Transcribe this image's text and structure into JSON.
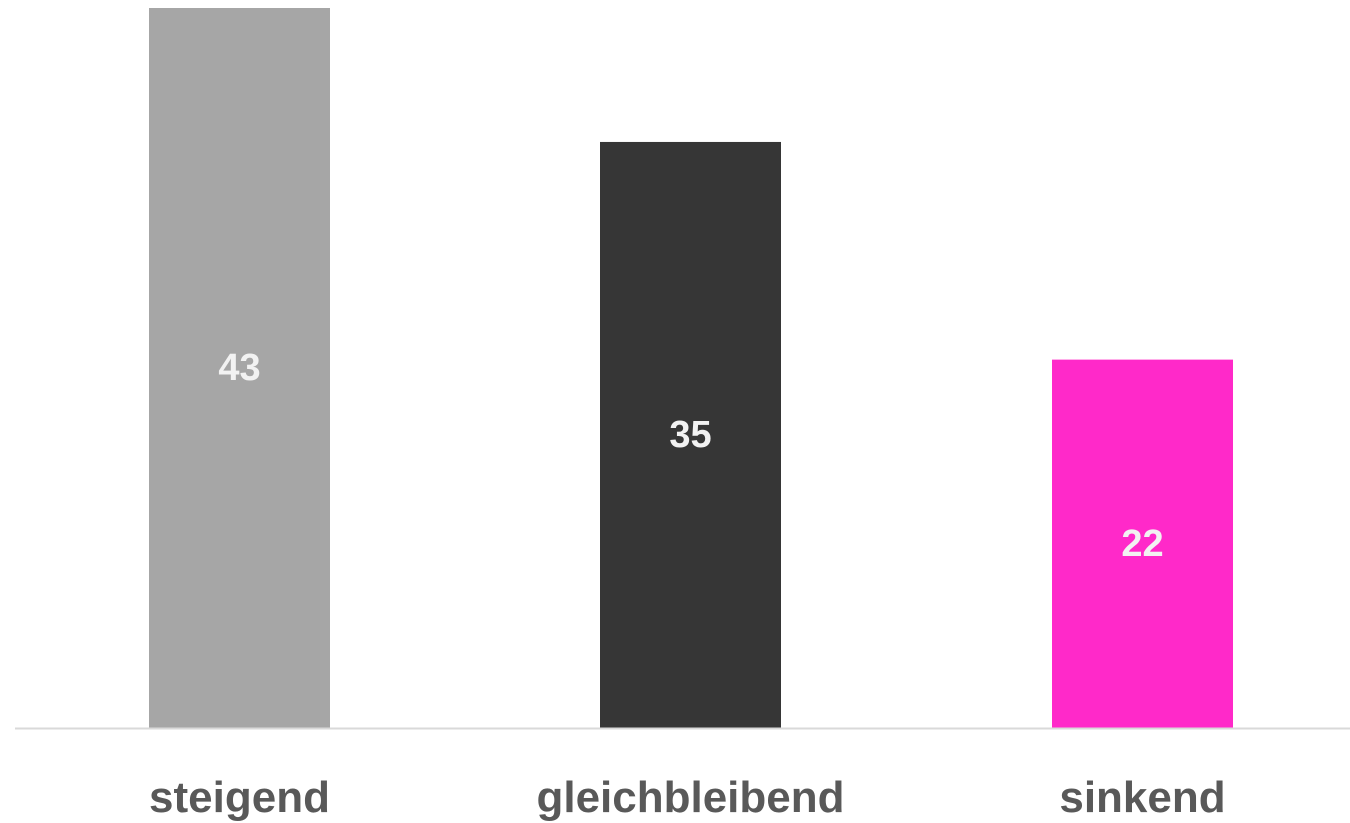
{
  "chart_data": {
    "type": "bar",
    "categories": [
      "steigend",
      "gleichbleibend",
      "sinkend"
    ],
    "values": [
      43,
      35,
      22
    ],
    "data_labels": [
      "43",
      "35",
      "22"
    ],
    "colors": [
      "#a6a6a6",
      "#363636",
      "#ff29c9"
    ],
    "label_colors": [
      "#f2f2f2",
      "#f2f2f2",
      "#f2f2f2"
    ],
    "axis_color": "#d9d9d9",
    "ylim": [
      0,
      43
    ],
    "grid": false,
    "legend": "none"
  }
}
